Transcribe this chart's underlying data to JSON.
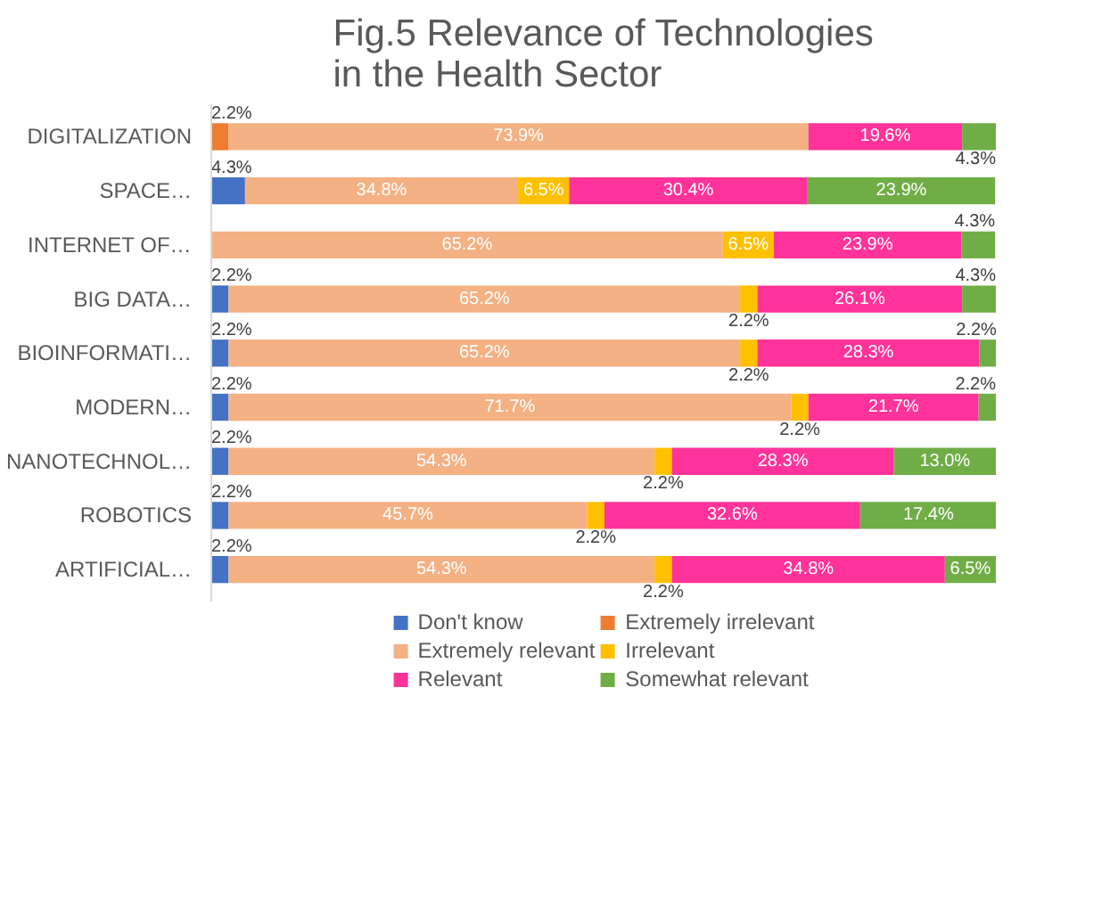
{
  "chart_data": {
    "type": "bar",
    "orientation": "horizontal",
    "stacked": true,
    "title": "Fig.5 Relevance of Technologies\nin the Health Sector",
    "categories": [
      "DIGITALIZATION",
      "SPACE…",
      "INTERNET OF…",
      "BIG DATA…",
      "BIOINFORMATI…",
      "MODERN…",
      "NANOTECHNOL…",
      "ROBOTICS",
      "ARTIFICIAL…"
    ],
    "xlim": [
      0,
      100
    ],
    "tick_labels": "y",
    "grid": false,
    "legend": "bottom",
    "series": [
      {
        "name": "Don't know",
        "color": "#4472c4",
        "values": [
          null,
          4.3,
          null,
          2.2,
          2.2,
          2.2,
          2.2,
          2.2,
          2.2
        ],
        "value_labels": [
          null,
          "4.3%",
          null,
          "2.2%",
          "2.2%",
          "2.2%",
          "2.2%",
          "2.2%",
          "2.2%"
        ]
      },
      {
        "name": "Extremely irrelevant",
        "color": "#ed7d31",
        "values": [
          2.2,
          null,
          null,
          null,
          null,
          null,
          null,
          null,
          null
        ],
        "value_labels": [
          "2.2%",
          null,
          null,
          null,
          null,
          null,
          null,
          null,
          null
        ]
      },
      {
        "name": "Extremely relevant",
        "color": "#f4b183",
        "values": [
          73.9,
          34.8,
          65.2,
          65.2,
          65.2,
          71.7,
          54.3,
          45.7,
          54.3
        ],
        "value_labels": [
          "73.9%",
          "34.8%",
          "65.2%",
          "65.2%",
          "65.2%",
          "71.7%",
          "54.3%",
          "45.7%",
          "54.3%"
        ]
      },
      {
        "name": "Irrelevant",
        "color": "#ffc000",
        "values": [
          null,
          6.5,
          6.5,
          2.2,
          2.2,
          2.2,
          2.2,
          2.2,
          2.2
        ],
        "value_labels": [
          null,
          "6.5%",
          "6.5%",
          "2.2%",
          "2.2%",
          "2.2%",
          "2.2%",
          "2.2%",
          "2.2%"
        ]
      },
      {
        "name": "Relevant",
        "color": "#ff3399",
        "values": [
          19.6,
          30.4,
          23.9,
          26.1,
          28.3,
          21.7,
          28.3,
          32.6,
          34.8
        ],
        "value_labels": [
          "19.6%",
          "30.4%",
          "23.9%",
          "26.1%",
          "28.3%",
          "21.7%",
          "28.3%",
          "32.6%",
          "34.8%"
        ]
      },
      {
        "name": "Somewhat relevant",
        "color": "#70ad47",
        "values": [
          4.3,
          23.9,
          4.3,
          4.3,
          2.2,
          2.2,
          13.0,
          17.4,
          6.5
        ],
        "value_labels": [
          "4.3%",
          "23.9%",
          "4.3%",
          "4.3%",
          "2.2%",
          "2.2%",
          "13.0%",
          "17.4%",
          "6.5%"
        ]
      }
    ]
  }
}
